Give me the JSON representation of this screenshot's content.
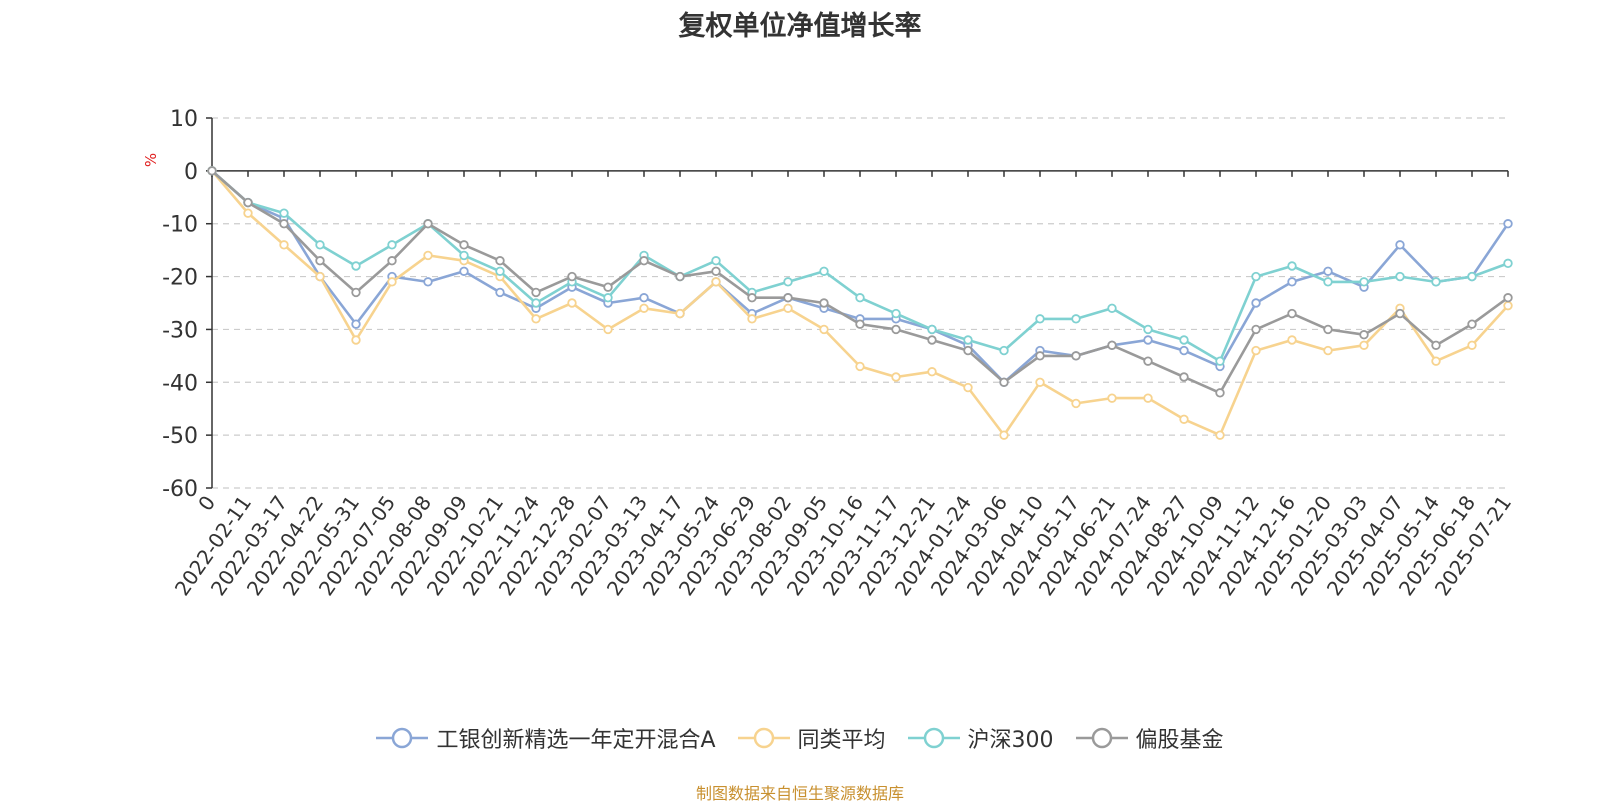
{
  "chart_data": {
    "type": "line",
    "title": "复权单位净值增长率",
    "ylabel": "%",
    "ylim": [
      -60,
      10
    ],
    "yticks": [
      10,
      0,
      -10,
      -20,
      -30,
      -40,
      -50,
      -60
    ],
    "xticks": [
      "0",
      "2022-02-11",
      "2022-03-17",
      "2022-04-22",
      "2022-05-31",
      "2022-07-05",
      "2022-08-08",
      "2022-09-09",
      "2022-10-21",
      "2022-11-24",
      "2022-12-28",
      "2023-02-07",
      "2023-03-13",
      "2023-04-17",
      "2023-05-24",
      "2023-06-29",
      "2023-08-02",
      "2023-09-05",
      "2023-10-16",
      "2023-11-17",
      "2023-12-21",
      "2024-01-24",
      "2024-03-06",
      "2024-04-10",
      "2024-05-17",
      "2024-06-21",
      "2024-07-24",
      "2024-08-27",
      "2024-10-09",
      "2024-11-12",
      "2024-12-16",
      "2025-01-20",
      "2025-03-03",
      "2025-04-07",
      "2025-05-14",
      "2025-06-18",
      "2025-07-21"
    ],
    "grid": "dashed-horizontal",
    "legend_position": "bottom-center",
    "series": [
      {
        "name": "工银创新精选一年定开混合A",
        "color": "#8aa6d6",
        "values": [
          0,
          -6,
          -9,
          -20,
          -29,
          -20,
          -21,
          -19,
          -23,
          -26,
          -22,
          -25,
          -24,
          -27,
          -21,
          -27,
          -24,
          -26,
          -28,
          -28,
          -30,
          -33,
          -40,
          -34,
          -35,
          -33,
          -32,
          -34,
          -37,
          -25,
          -21,
          -19,
          -22,
          -14,
          -21,
          -20,
          -10
        ]
      },
      {
        "name": "同类平均",
        "color": "#f7d38f",
        "values": [
          0,
          -8,
          -14,
          -20,
          -32,
          -21,
          -16,
          -17,
          -20,
          -28,
          -25,
          -30,
          -26,
          -27,
          -21,
          -28,
          -26,
          -30,
          -37,
          -39,
          -38,
          -41,
          -50,
          -40,
          -44,
          -43,
          -43,
          -47,
          -50,
          -34,
          -32,
          -34,
          -33,
          -26,
          -36,
          -33,
          -25.5
        ]
      },
      {
        "name": "沪深300",
        "color": "#7fd1d1",
        "values": [
          0,
          -6,
          -8,
          -14,
          -18,
          -14,
          -10,
          -16,
          -19,
          -25,
          -21,
          -24,
          -16,
          -20,
          -17,
          -23,
          -21,
          -19,
          -24,
          -27,
          -30,
          -32,
          -34,
          -28,
          -28,
          -26,
          -30,
          -32,
          -36,
          -20,
          -18,
          -21,
          -21,
          -20,
          -21,
          -20,
          -17.5
        ]
      },
      {
        "name": "偏股基金",
        "color": "#9a9a9a",
        "values": [
          0,
          -6,
          -10,
          -17,
          -23,
          -17,
          -10,
          -14,
          -17,
          -23,
          -20,
          -22,
          -17,
          -20,
          -19,
          -24,
          -24,
          -25,
          -29,
          -30,
          -32,
          -34,
          -40,
          -35,
          -35,
          -33,
          -36,
          -39,
          -42,
          -30,
          -27,
          -30,
          -31,
          -27,
          -33,
          -29,
          -24
        ]
      }
    ],
    "source": "制图数据来自恒生聚源数据库"
  }
}
